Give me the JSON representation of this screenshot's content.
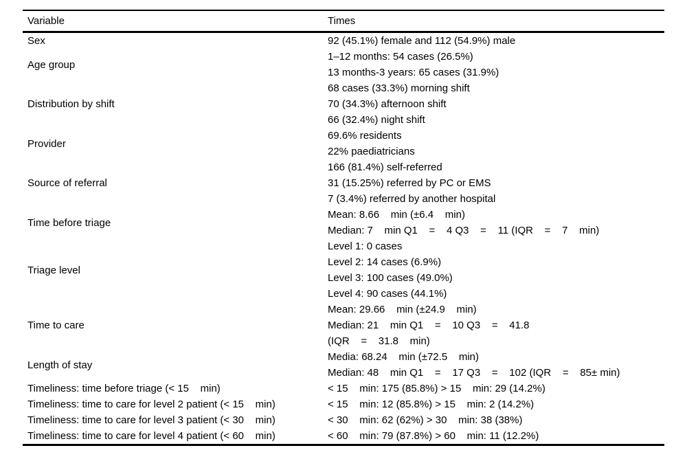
{
  "table": {
    "headers": {
      "variable": "Variable",
      "times": "Times"
    },
    "rows": [
      {
        "variable": "Sex",
        "times": [
          "92 (45.1%) female and 112 (54.9%) male"
        ]
      },
      {
        "variable": "Age group",
        "times": [
          "1–12 months: 54 cases (26.5%)",
          "13 months-3 years: 65 cases (31.9%)"
        ]
      },
      {
        "variable": "Distribution by shift",
        "times": [
          "68 cases (33.3%) morning shift",
          "70 (34.3%) afternoon shift",
          "66 (32.4%) night shift"
        ]
      },
      {
        "variable": "Provider",
        "times": [
          "69.6% residents",
          "22% paediatricians"
        ]
      },
      {
        "variable": "Source of referral",
        "times": [
          "166 (81.4%) self-referred",
          "31 (15.25%) referred by PC or EMS",
          "7 (3.4%) referred by another hospital"
        ]
      },
      {
        "variable": "Time before triage",
        "times": [
          "Mean: 8.66    min (±6.4    min)",
          "Median: 7    min Q1    =    4 Q3    =    11 (IQR    =    7    min)"
        ]
      },
      {
        "variable": "Triage level",
        "times": [
          "Level 1: 0 cases",
          "Level 2: 14 cases (6.9%)",
          "Level 3: 100 cases (49.0%)",
          "Level 4: 90 cases (44.1%)"
        ]
      },
      {
        "variable": "Time to care",
        "times": [
          "Mean: 29.66    min (±24.9    min)",
          "Median: 21    min Q1    =    10 Q3    =    41.8",
          "(IQR    =    31.8    min)"
        ]
      },
      {
        "variable": "Length of stay",
        "times": [
          "Media: 68.24    min (±72.5    min)",
          "Median: 48    min Q1    =    17 Q3    =    102 (IQR    =    85± min)"
        ]
      },
      {
        "variable": "Timeliness: time before triage (< 15    min)",
        "times": [
          "< 15    min: 175 (85.8%) > 15    min: 29 (14.2%)"
        ]
      },
      {
        "variable": "Timeliness: time to care for level 2 patient (< 15    min)",
        "times": [
          "< 15    min: 12 (85.8%) > 15    min: 2 (14.2%)"
        ]
      },
      {
        "variable": "Timeliness: time to care for level 3 patient (< 30    min)",
        "times": [
          "< 30    min: 62 (62%) > 30    min: 38 (38%)"
        ]
      },
      {
        "variable": "Timeliness: time to care for level 4 patient (< 60    min)",
        "times": [
          "< 60    min: 79 (87.8%) > 60    min: 11 (12.2%)"
        ]
      }
    ]
  }
}
